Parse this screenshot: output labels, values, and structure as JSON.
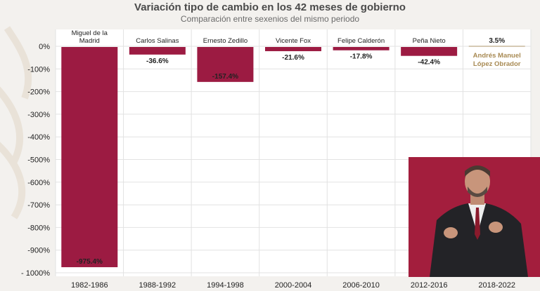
{
  "title": "Variación tipo de cambio en los 42 meses de gobierno",
  "subtitle": "Comparación entre sexenios del mismo periodo",
  "colors": {
    "bar": "#9c1b42",
    "positive_line": "#c8b89c",
    "amlo_label": "#a88a53",
    "axis_text": "#222222",
    "grid": "#e2e2e2",
    "inset_bg": "#a31e3d"
  },
  "chart_data": {
    "type": "bar",
    "title": "Variación tipo de cambio en los 42 meses de gobierno",
    "subtitle": "Comparación entre sexenios del mismo periodo",
    "categories": [
      "1982-1986",
      "1988-1992",
      "1994-1998",
      "2000-2004",
      "2006-2010",
      "2012-2016",
      "2018-2022"
    ],
    "series_names": [
      "Miguel de la Madrid",
      "Carlos Salinas",
      "Ernesto Zedillo",
      "Vicente Fox",
      "Felipe Calderón",
      "Peña Nieto",
      "Andrés Manuel López Obrador"
    ],
    "values": [
      -975.4,
      -36.6,
      -157.4,
      -21.6,
      -17.8,
      -42.4,
      3.5
    ],
    "value_labels": [
      "-975.4%",
      "-36.6%",
      "-157.4%",
      "-21.6%",
      "-17.8%",
      "-42.4%",
      "3.5%"
    ],
    "ylim": [
      -1000,
      0
    ],
    "yticks": [
      0,
      -100,
      -200,
      -300,
      -400,
      -500,
      -600,
      -700,
      -800,
      -900,
      -1000
    ],
    "ytick_labels": [
      "0%",
      "-100%",
      "-200%",
      "-300%",
      "-400%",
      "-500%",
      "-600%",
      "-700%",
      "-800%",
      "-900%",
      "- 1000%"
    ],
    "grid": true,
    "xlabel": "",
    "ylabel": ""
  }
}
